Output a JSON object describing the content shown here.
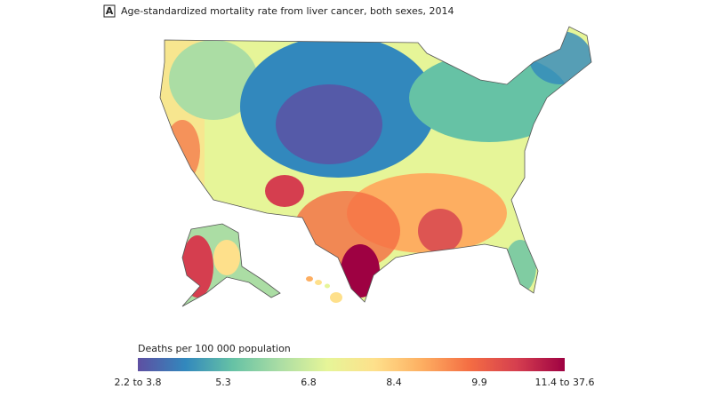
{
  "panel_label": "A",
  "title": "Age-standardized mortality rate from liver cancer, both sexes, 2014",
  "legend": {
    "title": "Deaths per 100 000 population",
    "labels": [
      "2.2 to 3.8",
      "5.3",
      "6.8",
      "8.4",
      "9.9",
      "11.4 to 37.6"
    ],
    "colors": [
      "#5e4fa2",
      "#3288bd",
      "#66c2a5",
      "#abdda4",
      "#e6f598",
      "#fee08b",
      "#fdae61",
      "#f46d43",
      "#d53e4f",
      "#9e0142"
    ]
  }
}
